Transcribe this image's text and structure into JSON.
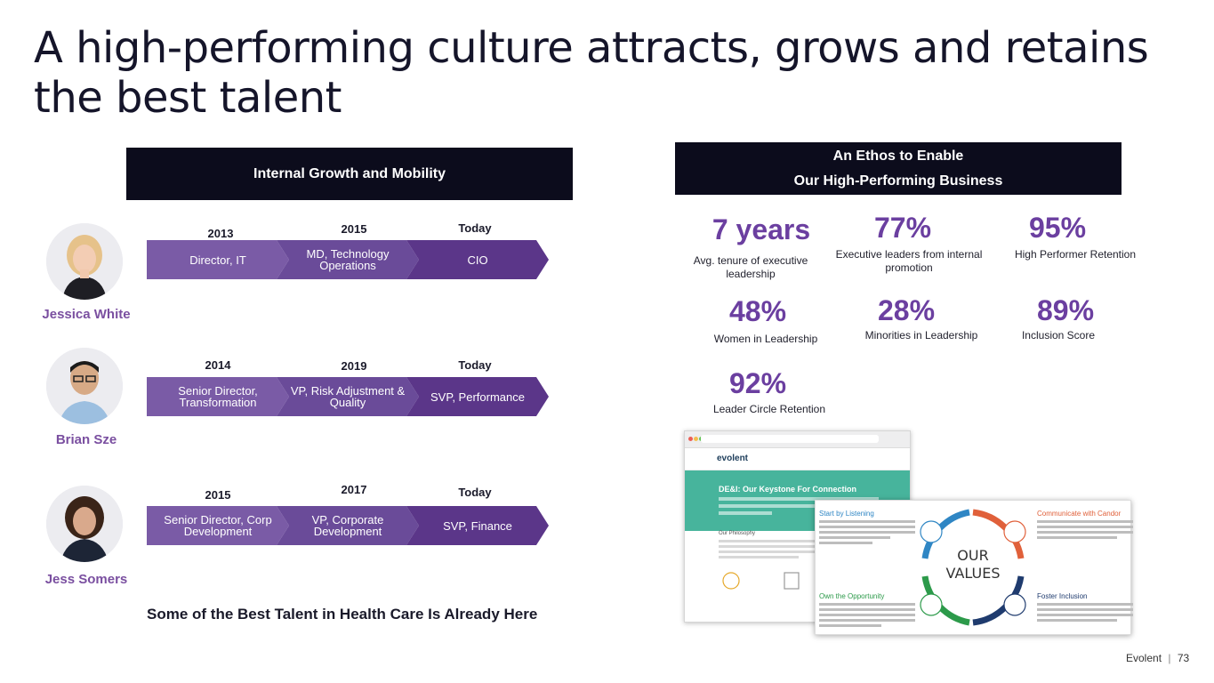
{
  "title": "A high-performing culture attracts, grows and retains the best talent",
  "left_header": "Internal Growth and Mobility",
  "right_header": {
    "line1": "An Ethos to Enable",
    "line2": "Our High-Performing Business"
  },
  "people": [
    {
      "name": "Jessica White",
      "years": [
        "2013",
        "2015",
        "Today"
      ],
      "roles": [
        "Director, IT",
        "MD, Technology Operations",
        "CIO"
      ]
    },
    {
      "name": "Brian Sze",
      "years": [
        "2014",
        "2019",
        "Today"
      ],
      "roles": [
        "Senior Director, Transformation",
        "VP, Risk Adjustment & Quality",
        "SVP, Performance"
      ]
    },
    {
      "name": "Jess Somers",
      "years": [
        "2015",
        "2017",
        "Today"
      ],
      "roles": [
        "Senior Director, Corp Development",
        "VP, Corporate Development",
        "SVP, Finance"
      ]
    }
  ],
  "stats": [
    {
      "value": "7 years",
      "label": "Avg. tenure of executive leadership"
    },
    {
      "value": "77%",
      "label": "Executive leaders from internal promotion"
    },
    {
      "value": "95%",
      "label": "High Performer Retention"
    },
    {
      "value": "48%",
      "label": "Women in Leadership"
    },
    {
      "value": "28%",
      "label": "Minorities in Leadership"
    },
    {
      "value": "89%",
      "label": "Inclusion Score"
    },
    {
      "value": "92%",
      "label": "Leader Circle Retention"
    }
  ],
  "tagline": "Some of the Best Talent in Health Care Is Already Here",
  "browser": {
    "logo": "evolent",
    "hero_title": "DE&I: Our Keystone For Connection",
    "sub": "Our Philosophy"
  },
  "values_card": {
    "center": "OUR VALUES",
    "q1": "Start by Listening",
    "q2": "Communicate with Candor",
    "q3": "Own the Opportunity",
    "q4": "Foster Inclusion",
    "colors": {
      "q1": "#2f86c4",
      "q2": "#e0603a",
      "q3": "#2c9a4a",
      "q4": "#1f3b6e"
    }
  },
  "footer": {
    "brand": "Evolent",
    "page": "73"
  }
}
